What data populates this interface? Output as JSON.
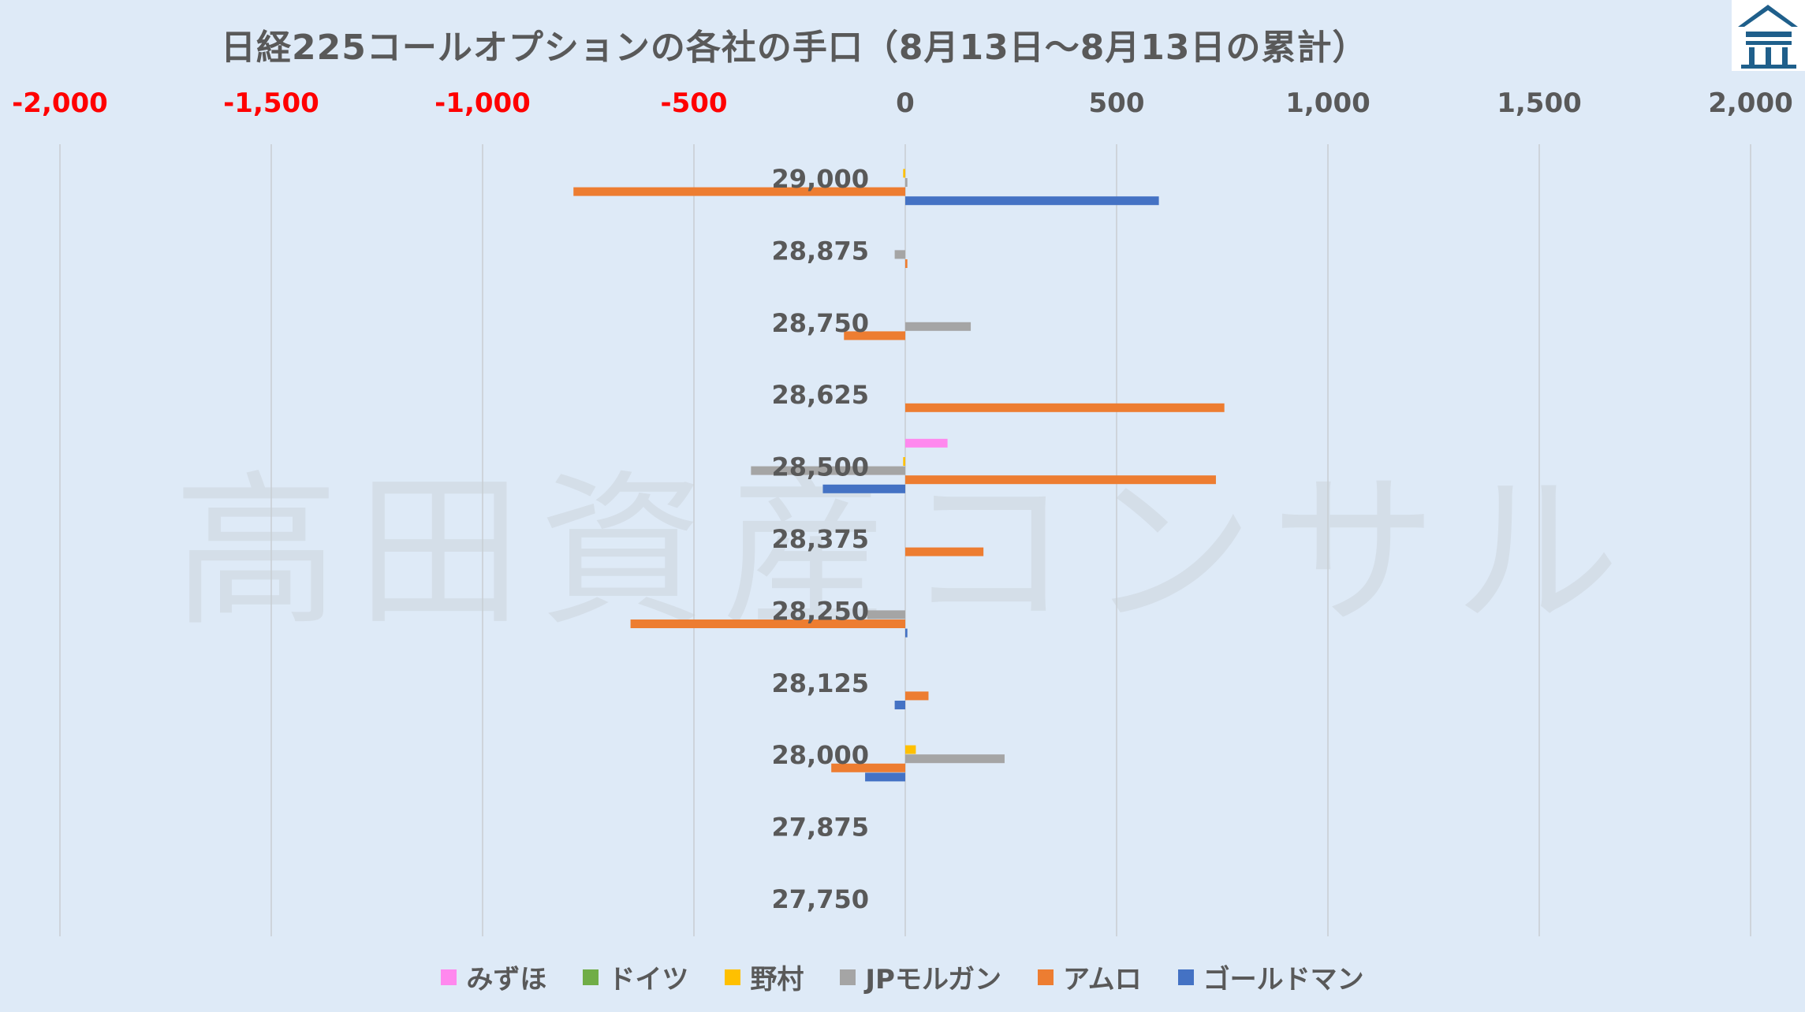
{
  "title": "日経225コールオプションの各社の手口（8月13日～8月13日の累計）",
  "watermark": "高田資産コンサル",
  "logo_icon": "roof-house-logo-icon",
  "chart_data": {
    "type": "bar",
    "orientation": "horizontal",
    "xlim": [
      -2000,
      2000
    ],
    "x_ticks": [
      "-2,000",
      "-1,500",
      "-1,000",
      "-500",
      "0",
      "500",
      "1,000",
      "1,500",
      "2,000"
    ],
    "x_tick_values": [
      -2000,
      -1500,
      -1000,
      -500,
      0,
      500,
      1000,
      1500,
      2000
    ],
    "negative_tick_color": "#ff0000",
    "positive_tick_color": "#595959",
    "grid": true,
    "legend_position": "bottom",
    "categories": [
      "29,000",
      "28,875",
      "28,750",
      "28,625",
      "28,500",
      "28,375",
      "28,250",
      "28,125",
      "28,000",
      "27,875",
      "27,750"
    ],
    "series": [
      {
        "name": "みずほ",
        "color": "#ff88ee",
        "values": [
          0,
          0,
          0,
          0,
          100,
          0,
          0,
          0,
          0,
          0,
          0
        ]
      },
      {
        "name": "ドイツ",
        "color": "#70ad47",
        "values": [
          0,
          0,
          0,
          0,
          0,
          0,
          0,
          0,
          0,
          0,
          0
        ]
      },
      {
        "name": "野村",
        "color": "#ffc000",
        "values": [
          -5,
          0,
          0,
          0,
          -5,
          0,
          0,
          0,
          25,
          0,
          0
        ]
      },
      {
        "name": "JPモルガン",
        "color": "#a5a5a5",
        "values": [
          5,
          -25,
          155,
          0,
          -365,
          0,
          -90,
          0,
          235,
          0,
          0
        ]
      },
      {
        "name": "アムロ",
        "color": "#ed7d31",
        "values": [
          -785,
          5,
          -145,
          755,
          735,
          185,
          -650,
          55,
          -175,
          0,
          0
        ]
      },
      {
        "name": "ゴールドマン",
        "color": "#4472c4",
        "values": [
          600,
          0,
          0,
          0,
          -195,
          0,
          5,
          -25,
          -95,
          0,
          0
        ]
      }
    ]
  }
}
